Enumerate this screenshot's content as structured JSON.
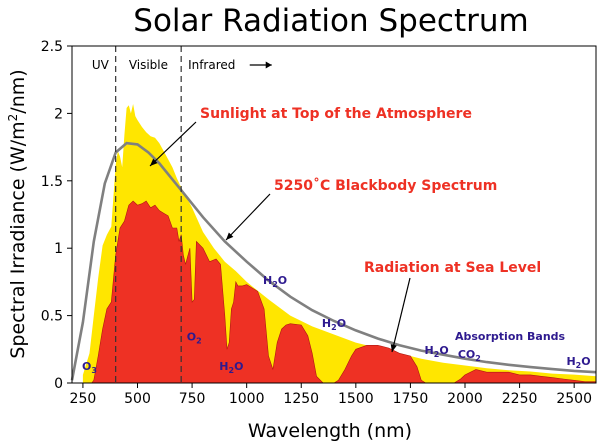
{
  "chart_data": {
    "type": "area",
    "title": "Solar Radiation Spectrum",
    "xlabel": "Wavelength (nm)",
    "ylabel_prefix": "Spectral Irradiance (W/m",
    "ylabel_sup": "2",
    "ylabel_suffix": "/nm)",
    "xlim": [
      200,
      2600
    ],
    "ylim": [
      0,
      2.5
    ],
    "x_ticks": [
      250,
      500,
      750,
      1000,
      1250,
      1500,
      1750,
      2000,
      2250,
      2500
    ],
    "y_ticks": [
      0,
      0.5,
      1,
      1.5,
      2,
      2.5
    ],
    "y_tick_labels": [
      "0",
      "0.5",
      "1",
      "1.5",
      "2",
      "2.5"
    ],
    "grid": false,
    "regions": [
      {
        "label": "UV",
        "x": 330
      },
      {
        "label": "Visible",
        "x": 550
      },
      {
        "label": "Infrared",
        "x": 840
      }
    ],
    "region_boundaries": [
      400,
      700
    ],
    "series": [
      {
        "name": "Sunlight at Top of the Atmosphere",
        "color": "#ffe600",
        "x": [
          250,
          280,
          300,
          320,
          340,
          360,
          380,
          400,
          410,
          420,
          430,
          440,
          450,
          460,
          470,
          480,
          490,
          500,
          520,
          540,
          560,
          580,
          600,
          620,
          640,
          660,
          680,
          700,
          750,
          800,
          850,
          900,
          950,
          1000,
          1100,
          1200,
          1300,
          1400,
          1500,
          1600,
          1700,
          1800,
          1900,
          2000,
          2100,
          2200,
          2300,
          2400,
          2500,
          2600
        ],
        "y": [
          0.06,
          0.22,
          0.5,
          0.78,
          1.02,
          1.1,
          1.16,
          1.62,
          1.72,
          1.68,
          1.6,
          1.84,
          2.04,
          2.06,
          2.0,
          2.07,
          1.98,
          1.95,
          1.9,
          1.86,
          1.83,
          1.82,
          1.78,
          1.72,
          1.66,
          1.6,
          1.52,
          1.45,
          1.3,
          1.12,
          1.0,
          0.9,
          0.83,
          0.75,
          0.62,
          0.5,
          0.42,
          0.36,
          0.3,
          0.26,
          0.22,
          0.18,
          0.15,
          0.13,
          0.11,
          0.095,
          0.085,
          0.07,
          0.062,
          0.05
        ]
      },
      {
        "name": "5250°C Blackbody Spectrum",
        "color": "#808080",
        "x": [
          200,
          250,
          300,
          350,
          400,
          450,
          500,
          550,
          600,
          650,
          700,
          800,
          900,
          1000,
          1100,
          1200,
          1300,
          1400,
          1500,
          1600,
          1700,
          1800,
          1900,
          2000,
          2100,
          2200,
          2300,
          2400,
          2500,
          2600
        ],
        "y": [
          0.02,
          0.45,
          1.05,
          1.48,
          1.71,
          1.78,
          1.77,
          1.71,
          1.63,
          1.53,
          1.43,
          1.23,
          1.05,
          0.9,
          0.76,
          0.64,
          0.54,
          0.46,
          0.39,
          0.33,
          0.28,
          0.24,
          0.21,
          0.18,
          0.155,
          0.135,
          0.118,
          0.103,
          0.09,
          0.08
        ]
      },
      {
        "name": "Radiation at Sea Level",
        "color": "#ee3124",
        "x": [
          290,
          300,
          320,
          340,
          360,
          380,
          400,
          420,
          440,
          460,
          480,
          500,
          520,
          540,
          560,
          580,
          600,
          620,
          640,
          660,
          680,
          690,
          700,
          710,
          720,
          740,
          750,
          760,
          770,
          800,
          830,
          860,
          880,
          900,
          910,
          920,
          930,
          940,
          950,
          960,
          980,
          1000,
          1050,
          1080,
          1100,
          1120,
          1140,
          1160,
          1180,
          1200,
          1250,
          1280,
          1300,
          1320,
          1350,
          1360,
          1380,
          1400,
          1420,
          1450,
          1480,
          1500,
          1550,
          1600,
          1650,
          1700,
          1750,
          1780,
          1800,
          1820,
          1850,
          1900,
          1950,
          1980,
          2000,
          2050,
          2100,
          2150,
          2200,
          2250,
          2300,
          2350,
          2400,
          2450,
          2500,
          2550,
          2600
        ],
        "y": [
          0,
          0.02,
          0.2,
          0.4,
          0.55,
          0.6,
          0.95,
          1.15,
          1.2,
          1.32,
          1.35,
          1.32,
          1.33,
          1.35,
          1.3,
          1.32,
          1.28,
          1.26,
          1.24,
          1.15,
          1.15,
          1.05,
          1.1,
          0.95,
          0.88,
          1.0,
          0.6,
          0.62,
          1.05,
          1.0,
          0.9,
          0.92,
          0.88,
          0.5,
          0.25,
          0.3,
          0.55,
          0.6,
          0.75,
          0.72,
          0.72,
          0.73,
          0.68,
          0.55,
          0.2,
          0.1,
          0.3,
          0.4,
          0.43,
          0.44,
          0.43,
          0.35,
          0.22,
          0.05,
          0,
          0,
          0,
          0,
          0.02,
          0.1,
          0.2,
          0.25,
          0.28,
          0.28,
          0.26,
          0.22,
          0.2,
          0.12,
          0.02,
          0,
          0,
          0,
          0,
          0.03,
          0.06,
          0.1,
          0.08,
          0.08,
          0.08,
          0.06,
          0.06,
          0.05,
          0.04,
          0.03,
          0.02,
          0.01,
          0.01
        ]
      }
    ],
    "annotations": [
      {
        "text": "Sunlight at Top of the Atmosphere",
        "kind": "label"
      },
      {
        "text": "5250˚C Blackbody Spectrum",
        "kind": "label"
      },
      {
        "text": "Radiation at Sea Level",
        "kind": "label"
      },
      {
        "text": "Absorption Bands",
        "kind": "chem"
      },
      {
        "base": "O",
        "sub": "3",
        "kind": "molecule",
        "x": 280,
        "y": 0.08
      },
      {
        "base": "O",
        "sub": "2",
        "kind": "molecule",
        "x": 760,
        "y": 0.3
      },
      {
        "base": "H",
        "sub": "2",
        "rest": "O",
        "kind": "molecule",
        "x": 930,
        "y": 0.08
      },
      {
        "base": "H",
        "sub": "2",
        "rest": "O",
        "kind": "molecule",
        "x": 1130,
        "y": 0.72
      },
      {
        "base": "H",
        "sub": "2",
        "rest": "O",
        "kind": "molecule",
        "x": 1400,
        "y": 0.4
      },
      {
        "base": "H",
        "sub": "2",
        "rest": "O",
        "kind": "molecule",
        "x": 1870,
        "y": 0.2
      },
      {
        "base": "CO",
        "sub": "2",
        "kind": "molecule",
        "x": 2020,
        "y": 0.17
      },
      {
        "base": "H",
        "sub": "2",
        "rest": "O",
        "kind": "molecule",
        "x": 2520,
        "y": 0.12
      }
    ]
  }
}
